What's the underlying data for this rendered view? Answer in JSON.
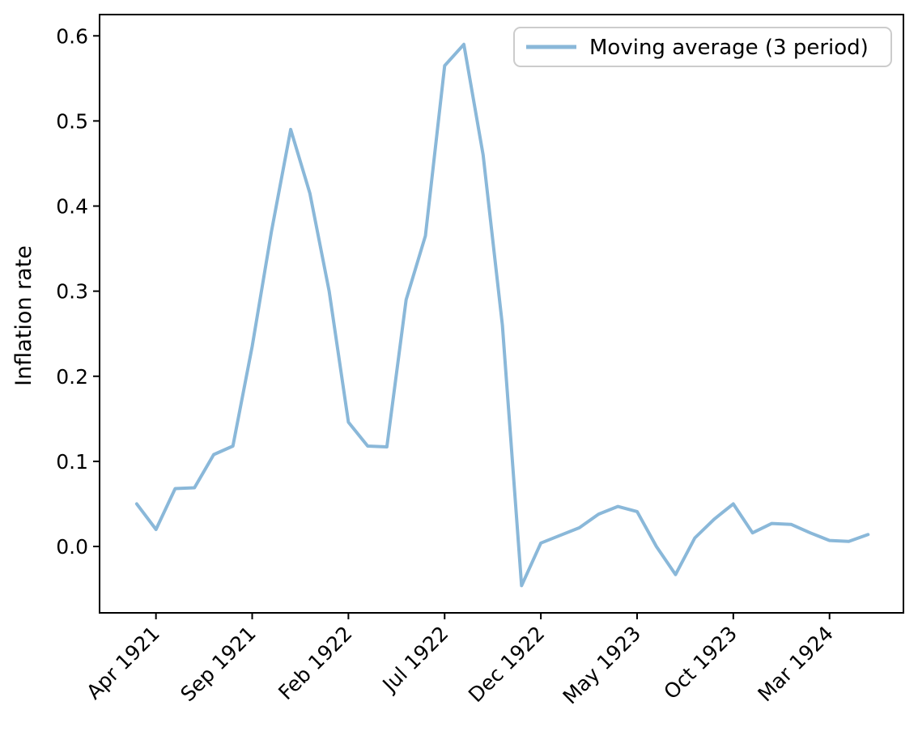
{
  "figure": {
    "background": "#ffffff",
    "axes_color": "#000000"
  },
  "chart_data": {
    "type": "line",
    "title": "",
    "xlabel": "",
    "ylabel": "Inflation rate",
    "grid": false,
    "legend": {
      "position": "upper right",
      "entries": [
        {
          "label": "Moving average (3 period)",
          "color": "#8ab8d9"
        }
      ]
    },
    "x": [
      "Mar 1921",
      "Apr 1921",
      "May 1921",
      "Jun 1921",
      "Jul 1921",
      "Aug 1921",
      "Sep 1921",
      "Oct 1921",
      "Nov 1921",
      "Dec 1921",
      "Jan 1922",
      "Feb 1922",
      "Mar 1922",
      "Apr 1922",
      "May 1922",
      "Jun 1922",
      "Jul 1922",
      "Aug 1922",
      "Sep 1922",
      "Oct 1922",
      "Nov 1922",
      "Dec 1922",
      "Jan 1923",
      "Feb 1923",
      "Mar 1923",
      "Apr 1923",
      "May 1923",
      "Jun 1923",
      "Jul 1923",
      "Aug 1923",
      "Sep 1923",
      "Oct 1923",
      "Nov 1923",
      "Dec 1923",
      "Jan 1924",
      "Feb 1924",
      "Mar 1924",
      "Apr 1924",
      "May 1924"
    ],
    "series": [
      {
        "name": "Moving average (3 period)",
        "color": "#8ab8d9",
        "line_width": 4,
        "values": [
          0.05,
          0.02,
          0.068,
          0.069,
          0.108,
          0.118,
          0.235,
          0.37,
          0.49,
          0.415,
          0.3,
          0.146,
          0.118,
          0.117,
          0.29,
          0.365,
          0.565,
          0.59,
          0.46,
          0.26,
          -0.046,
          0.004,
          0.013,
          0.022,
          0.038,
          0.047,
          0.041,
          0.0,
          -0.033,
          0.01,
          0.032,
          0.05,
          0.016,
          0.027,
          0.026,
          0.016,
          0.007,
          0.006,
          0.014
        ]
      }
    ],
    "x_tick_indices": [
      1,
      6,
      11,
      16,
      21,
      26,
      31,
      36
    ],
    "x_tick_labels": [
      "Apr 1921",
      "Sep 1921",
      "Feb 1922",
      "Jul 1922",
      "Dec 1922",
      "May 1923",
      "Oct 1923",
      "Mar 1924"
    ],
    "x_tick_rotation_deg": 45,
    "yticks": [
      0.0,
      0.1,
      0.2,
      0.3,
      0.4,
      0.5,
      0.6
    ],
    "ytick_labels": [
      "0.0",
      "0.1",
      "0.2",
      "0.3",
      "0.4",
      "0.5",
      "0.6"
    ],
    "ylim": [
      -0.078,
      0.625
    ],
    "xlim_index": [
      -1.93,
      39.84
    ]
  }
}
